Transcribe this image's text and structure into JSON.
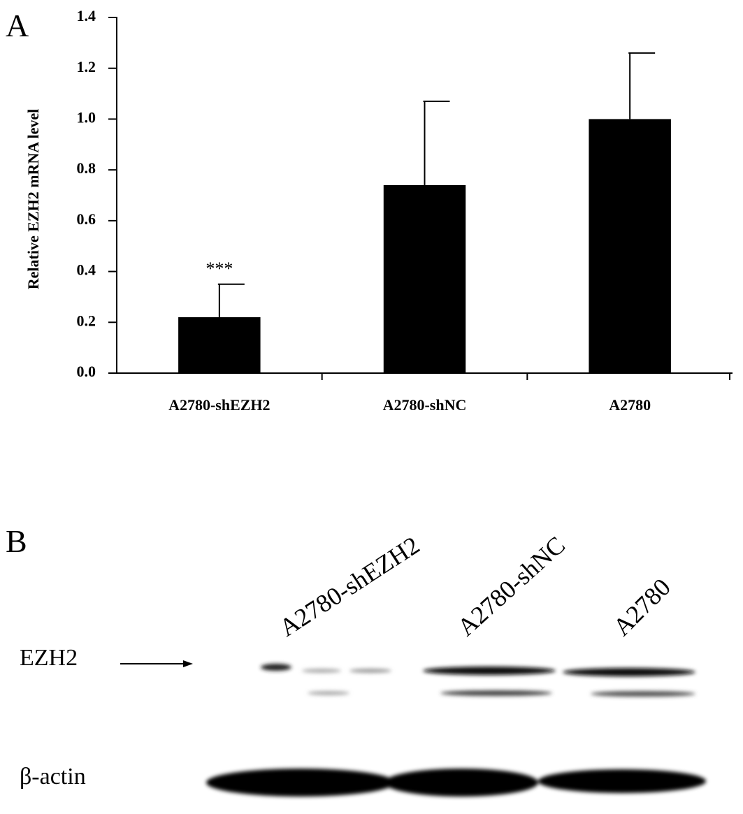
{
  "panel_a": {
    "label": "A"
  },
  "chart_data": {
    "type": "bar",
    "y_label": "Relative EZH2 mRNA level",
    "categories": [
      "A2780-shEZH2",
      "A2780-shNC",
      "A2780"
    ],
    "values": [
      0.22,
      0.74,
      1.0
    ],
    "errors": [
      0.13,
      0.33,
      0.26
    ],
    "significance": [
      "***",
      null,
      null
    ],
    "color": "#000000",
    "ylim": [
      0,
      1.4
    ],
    "yticks": [
      {
        "value": 0,
        "label": "0.0"
      },
      0.2,
      0.4,
      0.6,
      0.8,
      {
        "value": 1,
        "label": "1.0"
      },
      1.2,
      1.4
    ],
    "grid": false
  },
  "panel_b": {
    "label": "B",
    "lanes": [
      "A2780-shEZH2",
      "A2780-shNC",
      "A2780"
    ],
    "rows": [
      "EZH2",
      "β-actin"
    ]
  }
}
